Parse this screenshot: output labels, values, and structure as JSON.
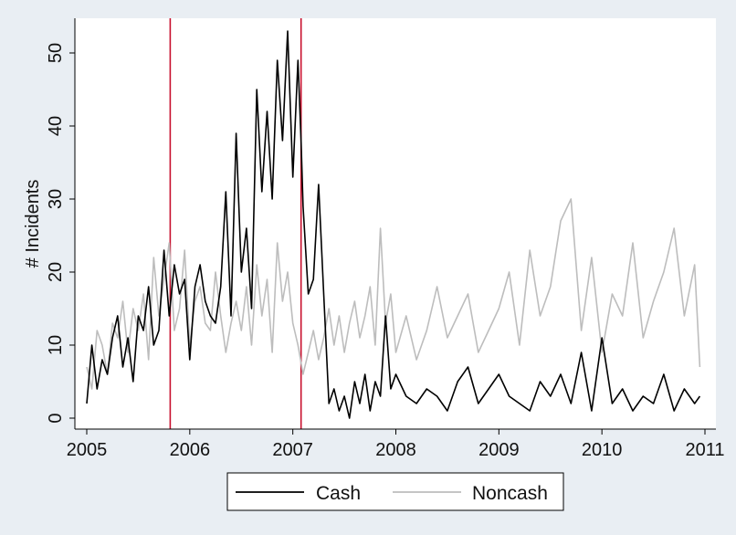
{
  "chart_data": {
    "type": "line",
    "ylabel": "# Incidents",
    "xlabel": "",
    "xlim": [
      2005,
      2011
    ],
    "ylim": [
      0,
      53
    ],
    "x_ticks": [
      2005,
      2006,
      2007,
      2008,
      2009,
      2010,
      2011
    ],
    "y_ticks": [
      0,
      10,
      20,
      30,
      40,
      50
    ],
    "grid": false,
    "legend_position": "bottom",
    "vertical_lines": {
      "x": [
        2005.81,
        2007.08
      ],
      "color": "#c8102e"
    },
    "series": [
      {
        "name": "Cash",
        "color": "#000000",
        "x": [
          2005.0,
          2005.05,
          2005.1,
          2005.15,
          2005.2,
          2005.25,
          2005.3,
          2005.35,
          2005.4,
          2005.45,
          2005.5,
          2005.55,
          2005.6,
          2005.65,
          2005.7,
          2005.75,
          2005.8,
          2005.85,
          2005.9,
          2005.95,
          2006.0,
          2006.05,
          2006.1,
          2006.15,
          2006.2,
          2006.25,
          2006.3,
          2006.35,
          2006.4,
          2006.45,
          2006.5,
          2006.55,
          2006.6,
          2006.65,
          2006.7,
          2006.75,
          2006.8,
          2006.85,
          2006.9,
          2006.95,
          2007.0,
          2007.05,
          2007.08,
          2007.1,
          2007.15,
          2007.2,
          2007.25,
          2007.3,
          2007.35,
          2007.4,
          2007.45,
          2007.5,
          2007.55,
          2007.6,
          2007.65,
          2007.7,
          2007.75,
          2007.8,
          2007.85,
          2007.9,
          2007.95,
          2008.0,
          2008.1,
          2008.2,
          2008.3,
          2008.4,
          2008.5,
          2008.6,
          2008.7,
          2008.8,
          2008.9,
          2009.0,
          2009.1,
          2009.2,
          2009.3,
          2009.4,
          2009.5,
          2009.6,
          2009.7,
          2009.8,
          2009.9,
          2010.0,
          2010.1,
          2010.2,
          2010.3,
          2010.4,
          2010.5,
          2010.6,
          2010.7,
          2010.8,
          2010.9,
          2010.95
        ],
        "values": [
          2,
          10,
          4,
          8,
          6,
          11,
          14,
          7,
          11,
          5,
          14,
          12,
          18,
          10,
          12,
          23,
          14,
          21,
          17,
          19,
          8,
          18,
          21,
          16,
          14,
          13,
          18,
          31,
          14,
          39,
          20,
          26,
          15,
          45,
          31,
          42,
          30,
          49,
          38,
          53,
          33,
          49,
          38,
          29,
          17,
          19,
          32,
          17,
          2,
          4,
          1,
          3,
          0,
          5,
          2,
          6,
          1,
          5,
          3,
          14,
          4,
          6,
          3,
          2,
          4,
          3,
          1,
          5,
          7,
          2,
          4,
          6,
          3,
          2,
          1,
          5,
          3,
          6,
          2,
          9,
          1,
          11,
          2,
          4,
          1,
          3,
          2,
          6,
          1,
          4,
          2,
          3
        ]
      },
      {
        "name": "Noncash",
        "color": "#bdbdbd",
        "x": [
          2005.0,
          2005.05,
          2005.1,
          2005.15,
          2005.2,
          2005.25,
          2005.3,
          2005.35,
          2005.4,
          2005.45,
          2005.5,
          2005.55,
          2005.6,
          2005.65,
          2005.7,
          2005.75,
          2005.8,
          2005.85,
          2005.9,
          2005.95,
          2006.0,
          2006.05,
          2006.1,
          2006.15,
          2006.2,
          2006.25,
          2006.3,
          2006.35,
          2006.4,
          2006.45,
          2006.5,
          2006.55,
          2006.6,
          2006.65,
          2006.7,
          2006.75,
          2006.8,
          2006.85,
          2006.9,
          2006.95,
          2007.0,
          2007.05,
          2007.1,
          2007.15,
          2007.2,
          2007.25,
          2007.3,
          2007.35,
          2007.4,
          2007.45,
          2007.5,
          2007.55,
          2007.6,
          2007.65,
          2007.7,
          2007.75,
          2007.8,
          2007.85,
          2007.9,
          2007.95,
          2008.0,
          2008.1,
          2008.2,
          2008.3,
          2008.4,
          2008.5,
          2008.6,
          2008.7,
          2008.8,
          2008.9,
          2009.0,
          2009.1,
          2009.2,
          2009.3,
          2009.4,
          2009.5,
          2009.6,
          2009.7,
          2009.8,
          2009.9,
          2010.0,
          2010.1,
          2010.2,
          2010.3,
          2010.4,
          2010.5,
          2010.6,
          2010.7,
          2010.8,
          2010.9,
          2010.95
        ],
        "values": [
          7,
          4,
          12,
          10,
          6,
          13,
          11,
          16,
          9,
          15,
          12,
          17,
          8,
          22,
          14,
          19,
          24,
          12,
          15,
          23,
          10,
          16,
          18,
          13,
          12,
          20,
          14,
          9,
          13,
          16,
          12,
          18,
          10,
          21,
          14,
          19,
          9,
          24,
          16,
          20,
          13,
          10,
          6,
          9,
          12,
          8,
          11,
          15,
          10,
          14,
          9,
          13,
          16,
          11,
          14,
          18,
          10,
          26,
          13,
          17,
          9,
          14,
          8,
          12,
          18,
          11,
          14,
          17,
          9,
          12,
          15,
          20,
          10,
          23,
          14,
          18,
          27,
          30,
          12,
          22,
          9,
          17,
          14,
          24,
          11,
          16,
          20,
          26,
          14,
          21,
          7
        ]
      }
    ]
  }
}
